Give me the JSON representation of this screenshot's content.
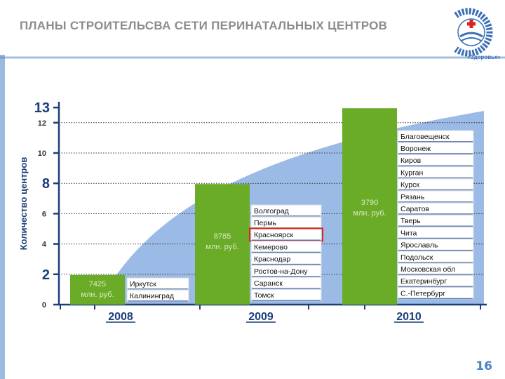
{
  "slide": {
    "title": "ПЛАНЫ СТРОИТЕЛЬСВА СЕТИ ПЕРИНАТАЛЬНЫХ ЦЕНТРОВ",
    "page_number": "16",
    "logo_text": "Приоритетный национальный проект «Здоровье»"
  },
  "colors": {
    "accent": "#4a82c4",
    "area": "#9bbbe6",
    "bar": "#6aab27",
    "bar_label": "#d9ebc4",
    "year": "#1c3f7a",
    "highlight": "#d9241d",
    "title": "#8c8c8c"
  },
  "chart_data": {
    "type": "bar",
    "ylabel": "Количество центров",
    "yticks": [
      "0",
      "2",
      "4",
      "6",
      "8",
      "10",
      "12",
      "13"
    ],
    "ylim": [
      0,
      13
    ],
    "grid": true,
    "categories": [
      "2008",
      "2009",
      "2010"
    ],
    "values": [
      2,
      8,
      13
    ],
    "bar_labels": [
      "7425\nмлн. руб.",
      "8785\nмлн. руб.",
      "3790\nмлн. руб."
    ],
    "city_lists": [
      [
        "Иркутск",
        "Калининград"
      ],
      [
        "Волгоград",
        "Пермь",
        "Красноярск",
        "Кемерово",
        "Краснодар",
        "Ростов-на-Дону",
        "Саранск",
        "Томск"
      ],
      [
        "Благовещенск",
        "Воронеж",
        "Киров",
        "Курган",
        "Курск",
        "Рязань",
        "Саратов",
        "Тверь",
        "Чита",
        "Ярославль",
        "Подольск",
        "Московская обл",
        "Екатеринбург",
        "С.-Петербург"
      ]
    ],
    "highlighted_city": "Красноярск"
  }
}
